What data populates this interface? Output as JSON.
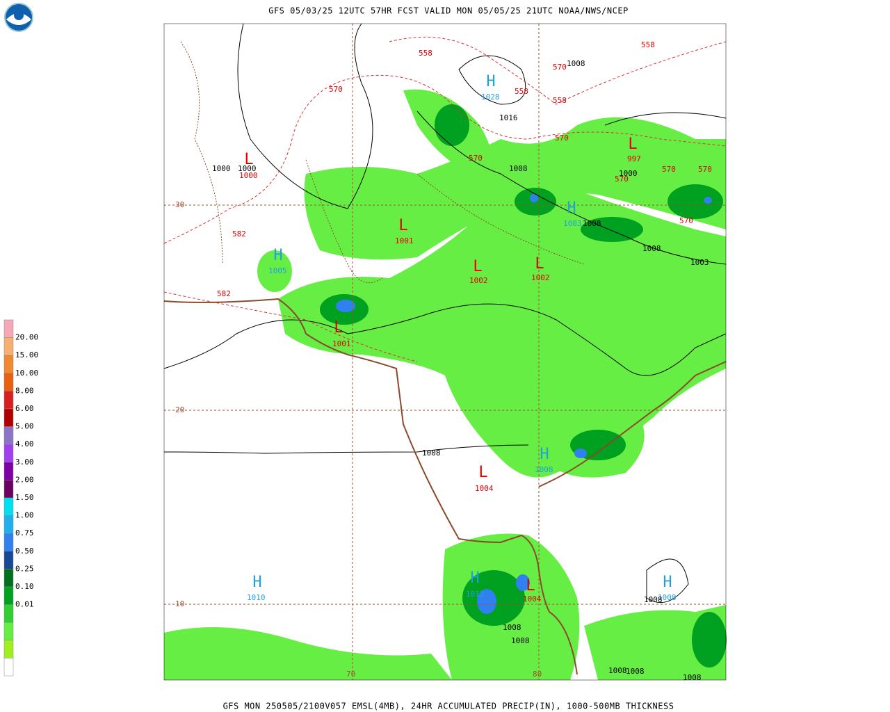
{
  "header": {
    "title": "GFS 05/03/25 12UTC 57HR FCST VALID MON 05/05/25 21UTC NOAA/NWS/NCEP"
  },
  "footer": {
    "caption": "GFS MON 250505/2100V057 EMSL(4MB), 24HR ACCUMULATED PRECIP(IN), 1000-500MB THICKNESS"
  },
  "legend": {
    "labels": [
      "20.00",
      "15.00",
      "10.00",
      "8.00",
      "6.00",
      "5.00",
      "4.00",
      "3.00",
      "2.00",
      "1.50",
      "1.00",
      "0.75",
      "0.50",
      "0.25",
      "0.10",
      "0.01"
    ],
    "colors": [
      "#f6a8b8",
      "#f7b070",
      "#f08a30",
      "#e86010",
      "#d82020",
      "#b00000",
      "#8c74c8",
      "#a040f0",
      "#8000a8",
      "#6a0060",
      "#00e0f0",
      "#20b0f0",
      "#3080f0",
      "#184898",
      "#00701c",
      "#00a020",
      "#30d030",
      "#66ee44",
      "#a0f020",
      "#ffffff"
    ]
  },
  "grid": {
    "lat_labels": [
      "30",
      "20",
      "10"
    ],
    "lon_labels": [
      "70",
      "80"
    ]
  },
  "map_labels": [
    {
      "text": "H",
      "color": "#20a0e0"
    },
    {
      "text": "1028",
      "color": "#20a0e0"
    },
    {
      "text": "L",
      "color": "#e00000"
    },
    {
      "text": "1000",
      "color": "#e00000"
    },
    {
      "text": "L",
      "color": "#e00000"
    },
    {
      "text": "1001",
      "color": "#e00000"
    },
    {
      "text": "H",
      "color": "#20a0e0"
    },
    {
      "text": "1005",
      "color": "#20a0e0"
    },
    {
      "text": "L",
      "color": "#e00000"
    },
    {
      "text": "1002",
      "color": "#e00000"
    },
    {
      "text": "L",
      "color": "#e00000"
    },
    {
      "text": "1002",
      "color": "#e00000"
    },
    {
      "text": "H",
      "color": "#20a0e0"
    },
    {
      "text": "1003",
      "color": "#20a0e0"
    },
    {
      "text": "L",
      "color": "#e00000"
    },
    {
      "text": "997",
      "color": "#e00000"
    },
    {
      "text": "L",
      "color": "#e00000"
    },
    {
      "text": "1001",
      "color": "#e00000"
    },
    {
      "text": "L",
      "color": "#e00000"
    },
    {
      "text": "1004",
      "color": "#e00000"
    },
    {
      "text": "H",
      "color": "#20a0e0"
    },
    {
      "text": "1008",
      "color": "#20a0e0"
    },
    {
      "text": "H",
      "color": "#20a0e0"
    },
    {
      "text": "1010",
      "color": "#20a0e0"
    },
    {
      "text": "H",
      "color": "#20a0e0"
    },
    {
      "text": "1012",
      "color": "#20a0e0"
    },
    {
      "text": "L",
      "color": "#e00000"
    },
    {
      "text": "1004",
      "color": "#e00000"
    },
    {
      "text": "H",
      "color": "#20a0e0"
    },
    {
      "text": "1008",
      "color": "#20a0e0"
    },
    {
      "text": "1008",
      "color": "#000000"
    },
    {
      "text": "1016",
      "color": "#000000"
    },
    {
      "text": "1008",
      "color": "#000000"
    },
    {
      "text": "1000",
      "color": "#000000"
    },
    {
      "text": "1000",
      "color": "#000000"
    },
    {
      "text": "1000",
      "color": "#000000"
    },
    {
      "text": "1008",
      "color": "#000000"
    },
    {
      "text": "1008",
      "color": "#000000"
    },
    {
      "text": "1003",
      "color": "#000000"
    },
    {
      "text": "1008",
      "color": "#000000"
    },
    {
      "text": "1008",
      "color": "#000000"
    },
    {
      "text": "1008",
      "color": "#000000"
    },
    {
      "text": "1008",
      "color": "#000000"
    },
    {
      "text": "1008",
      "color": "#000000"
    },
    {
      "text": "1008",
      "color": "#000000"
    },
    {
      "text": "1008",
      "color": "#000000"
    },
    {
      "text": "558",
      "color": "#e00000"
    },
    {
      "text": "558",
      "color": "#e00000"
    },
    {
      "text": "570",
      "color": "#e00000"
    },
    {
      "text": "558",
      "color": "#e00000"
    },
    {
      "text": "558",
      "color": "#e00000"
    },
    {
      "text": "570",
      "color": "#e00000"
    },
    {
      "text": "570",
      "color": "#e00000"
    },
    {
      "text": "570",
      "color": "#e00000"
    },
    {
      "text": "570",
      "color": "#e00000"
    },
    {
      "text": "570",
      "color": "#e00000"
    },
    {
      "text": "570",
      "color": "#e00000"
    },
    {
      "text": "570",
      "color": "#e00000"
    },
    {
      "text": "582",
      "color": "#e00000"
    },
    {
      "text": "582",
      "color": "#e00000"
    }
  ]
}
